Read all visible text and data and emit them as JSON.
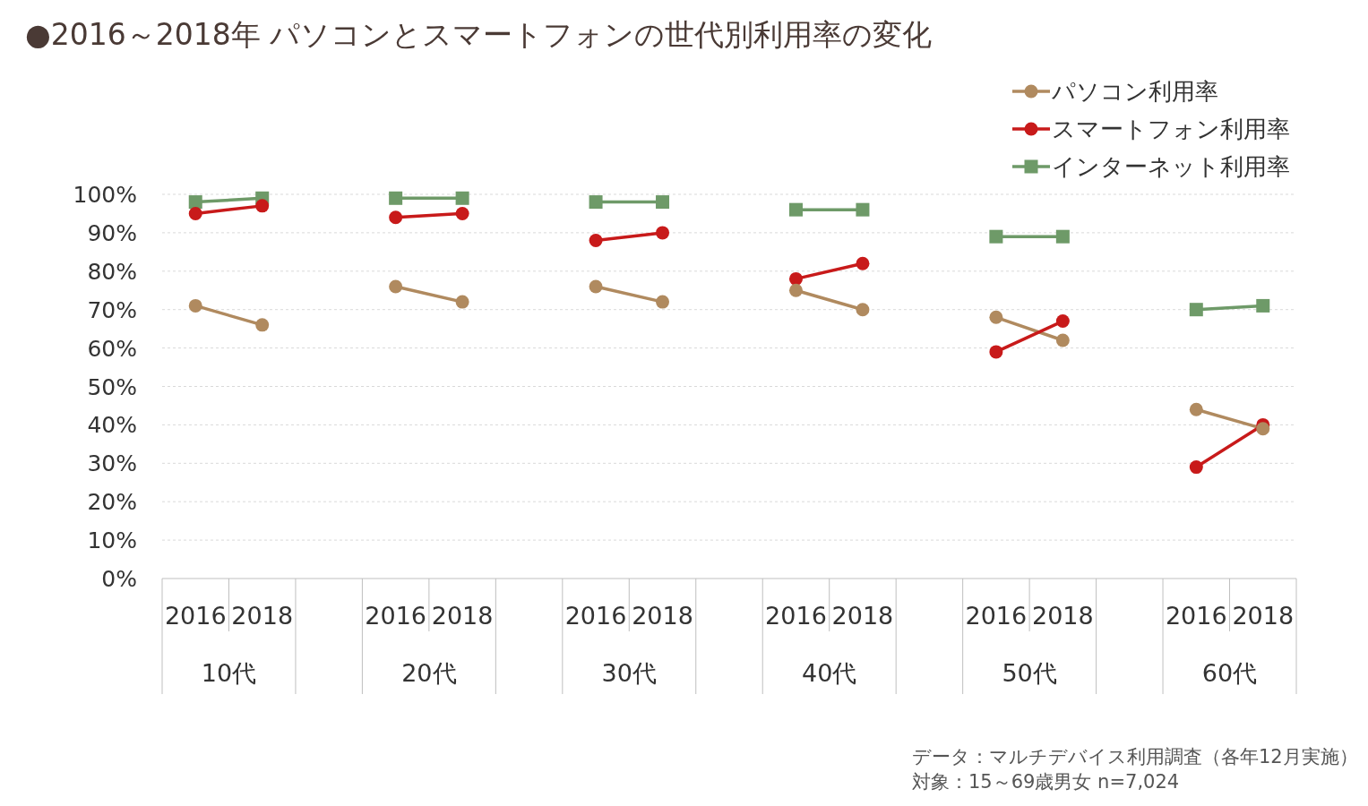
{
  "chart_data": {
    "type": "line",
    "title": "●2016～2018年  パソコンとスマートフォンの世代別利用率の変化",
    "categories": [
      "2016",
      "2018",
      null,
      "2016",
      "2018",
      null,
      "2016",
      "2018",
      null,
      "2016",
      "2018",
      null,
      "2016",
      "2018",
      null,
      "2016",
      "2018"
    ],
    "series": [
      {
        "name": "パソコン利用率",
        "color": "#b08a5f",
        "marker": "circle",
        "values": [
          71,
          66,
          null,
          76,
          72,
          null,
          76,
          72,
          null,
          75,
          70,
          null,
          68,
          62,
          null,
          44,
          39
        ]
      },
      {
        "name": "スマートフォン利用率",
        "color": "#c81a1a",
        "marker": "circle",
        "values": [
          95,
          97,
          null,
          94,
          95,
          null,
          88,
          90,
          null,
          78,
          82,
          null,
          59,
          67,
          null,
          29,
          40
        ]
      },
      {
        "name": "インターネット利用率",
        "color": "#6e9a68",
        "marker": "square",
        "values": [
          98,
          99,
          null,
          99,
          99,
          null,
          98,
          98,
          null,
          96,
          96,
          null,
          89,
          89,
          null,
          70,
          71
        ]
      }
    ],
    "ylim": [
      0,
      100
    ],
    "yticks": [
      {
        "value": 0,
        "label": "0%"
      },
      {
        "value": 10,
        "label": "10%"
      },
      {
        "value": 20,
        "label": "20%"
      },
      {
        "value": 30,
        "label": "30%"
      },
      {
        "value": 40,
        "label": "40%"
      },
      {
        "value": 50,
        "label": "50%"
      },
      {
        "value": 60,
        "label": "60%"
      },
      {
        "value": 70,
        "label": "70%"
      },
      {
        "value": 80,
        "label": "80%"
      },
      {
        "value": 90,
        "label": "90%"
      },
      {
        "value": 100,
        "label": "100%"
      }
    ],
    "grid": "y",
    "legend": "top right",
    "line_style": "solid",
    "annotations": [
      "10代",
      "20代",
      "30代",
      "40代",
      "50代",
      "60代",
      "データ：マルチデバイス利用調査（各年12月実施）",
      "対象：15～69歳男女   n=7,024"
    ]
  }
}
